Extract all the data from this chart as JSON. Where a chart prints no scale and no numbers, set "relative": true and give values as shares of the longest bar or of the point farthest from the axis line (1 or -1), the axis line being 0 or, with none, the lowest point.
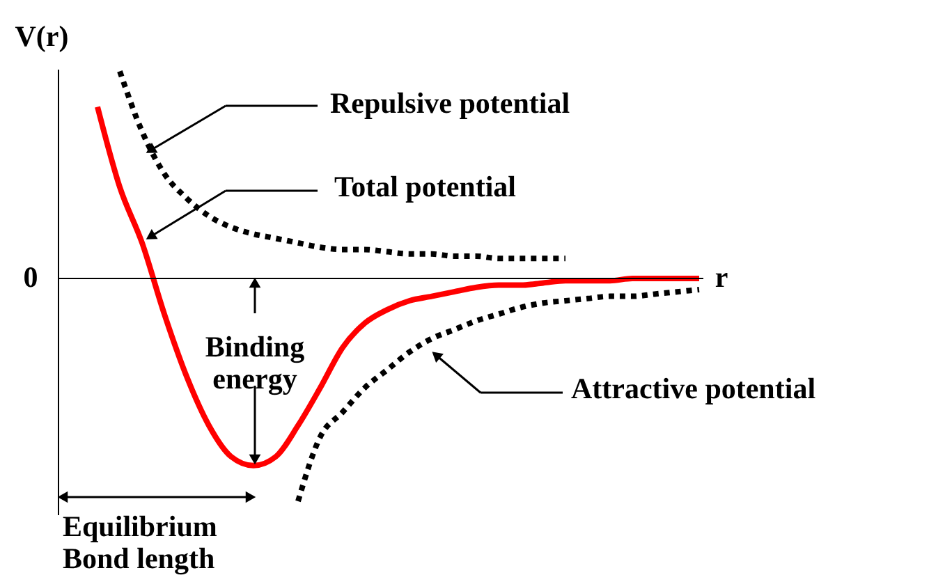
{
  "chart_data": {
    "type": "line",
    "relative": true,
    "ylabel": "V(r)",
    "xlabel": "r",
    "marker": "none",
    "categories": [
      null,
      null,
      null,
      null,
      null,
      null,
      null,
      null,
      null,
      null,
      null,
      null,
      null,
      null,
      null,
      null,
      null,
      null,
      null,
      null,
      null,
      null,
      null,
      null,
      null,
      null,
      null,
      null
    ],
    "series": [
      {
        "color": "#000000",
        "line_style": "dotted",
        "values": [
          null,
          0.93,
          0.66,
          0.47,
          0.36,
          0.28,
          0.23,
          0.2,
          0.18,
          0.16,
          0.14,
          0.13,
          0.13,
          0.12,
          0.11,
          0.11,
          0.1,
          0.1,
          0.09,
          0.09,
          0.09,
          0.09,
          null,
          null,
          null,
          null,
          null,
          null
        ]
      },
      {
        "color": "#ff0000",
        "line_style": "solid",
        "values": [
          0.77,
          0.41,
          0.16,
          -0.16,
          -0.44,
          -0.66,
          -0.8,
          -0.84,
          -0.8,
          -0.66,
          -0.49,
          -0.31,
          -0.2,
          -0.14,
          -0.1,
          -0.08,
          -0.06,
          -0.04,
          -0.03,
          -0.03,
          -0.02,
          -0.01,
          -0.01,
          -0.01,
          0,
          0,
          0,
          0
        ]
      },
      {
        "color": "#000000",
        "line_style": "dotted",
        "values": [
          null,
          null,
          null,
          null,
          null,
          null,
          null,
          null,
          null,
          -1,
          -0.71,
          -0.6,
          -0.49,
          -0.41,
          -0.33,
          -0.27,
          -0.23,
          -0.19,
          -0.16,
          -0.13,
          -0.11,
          -0.1,
          -0.09,
          -0.08,
          -0.08,
          -0.07,
          -0.06,
          -0.05
        ]
      }
    ],
    "ref_lines": [
      {
        "axis": "y",
        "value": 0,
        "label": "0"
      }
    ],
    "annotations": [
      "Repulsive potential",
      "Total potential",
      "Binding\nenergy",
      "Attractive potential",
      "Equilibrium\nBond length"
    ]
  }
}
